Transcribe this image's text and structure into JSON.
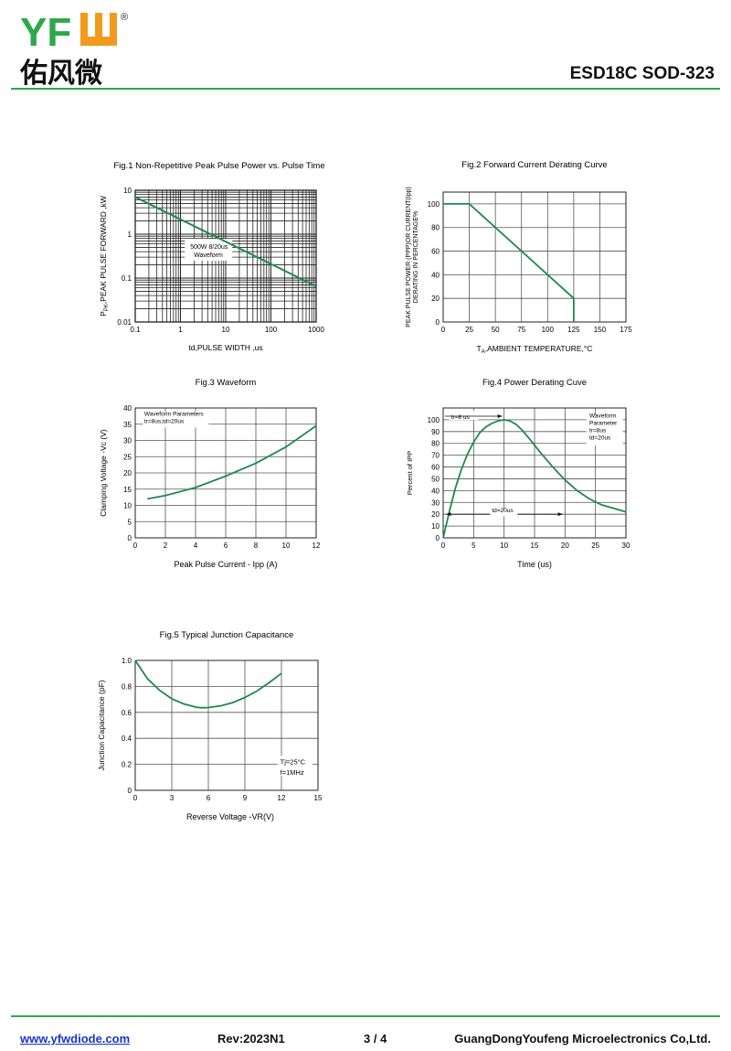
{
  "header": {
    "logo_text": "YFW",
    "logo_registered": "®",
    "logo_cn": "佑风微",
    "title": "ESD18C SOD-323"
  },
  "colors": {
    "accent": "#2ea84a",
    "curve": "#1f8a4c",
    "logo_green": "#2ea84a",
    "logo_orange": "#f39a1e"
  },
  "footer": {
    "url": "www.yfwdiode.com",
    "rev": "Rev:2023N1",
    "page": "3 / 4",
    "company": "GuangDongYoufeng Microelectronics Co,Ltd."
  },
  "chart_data": [
    {
      "type": "line",
      "title": "Fig.1  Non-Repetitive Peak Pulse Power vs. Pulse Time",
      "xlabel": "td,PULSE WIDTH ,us",
      "ylabel": "P",
      "ylabel_sub": "PK",
      "ylabel_rest": ",PEAK PULSE FORWARD ,kW",
      "xscale": "log",
      "yscale": "log",
      "xlim": [
        0.1,
        1000
      ],
      "ylim": [
        0.01,
        10
      ],
      "xticks": [
        "0.1",
        "1",
        "10",
        "100",
        "1000"
      ],
      "yticks": [
        "0.01",
        "0.1",
        "1",
        "10"
      ],
      "annotation": [
        "500W 8/20us",
        "Waveform"
      ],
      "grid": true,
      "series": [
        {
          "x": [
            0.1,
            1000
          ],
          "y": [
            7,
            0.065
          ]
        }
      ]
    },
    {
      "type": "line",
      "title": "Fig.2  Forward Current Derating Curve",
      "xlabel": "T",
      "xlabel_sub": "A",
      "xlabel_rest": ",AMBIENT TEMPERATURE,°C",
      "ylabel_lines": [
        "PEAK PULSE POWER (PPP)OR CURRENT(Ipp)",
        "DERATING IN PERCENTAGE%"
      ],
      "xlim": [
        0,
        175
      ],
      "ylim": [
        0,
        110
      ],
      "xticks": [
        "0",
        "25",
        "50",
        "75",
        "100",
        "125",
        "150",
        "175"
      ],
      "yticks": [
        "0",
        "20",
        "40",
        "60",
        "80",
        "100"
      ],
      "grid": true,
      "series": [
        {
          "x": [
            0,
            25,
            125,
            125
          ],
          "y": [
            100,
            100,
            20,
            0
          ]
        }
      ]
    },
    {
      "type": "line",
      "title": "Fig.3  Waveform",
      "xlabel": "Peak Pulse Current - Ipp (A)",
      "ylabel": "Clamping Voltage -Vc (V)",
      "xlim": [
        0,
        12
      ],
      "ylim": [
        0,
        40
      ],
      "xticks": [
        "0",
        "2",
        "4",
        "6",
        "8",
        "10",
        "12"
      ],
      "yticks": [
        "0",
        "5",
        "10",
        "15",
        "20",
        "25",
        "30",
        "35",
        "40"
      ],
      "annotation": [
        "Waveform Parameters",
        "tr=8us,td=20us"
      ],
      "grid": true,
      "series": [
        {
          "x": [
            0.8,
            2,
            4,
            6,
            8,
            10,
            12
          ],
          "y": [
            12,
            13,
            15.5,
            19,
            23,
            28,
            34.5
          ]
        }
      ]
    },
    {
      "type": "line",
      "title": "Fig.4  Power Derating Cuve",
      "xlabel": "Time (us)",
      "ylabel": "Percent of IPP",
      "xlim": [
        0,
        30
      ],
      "ylim": [
        0,
        110
      ],
      "xticks": [
        "0",
        "5",
        "10",
        "15",
        "20",
        "25",
        "30"
      ],
      "yticks": [
        "0",
        "10",
        "20",
        "30",
        "40",
        "50",
        "60",
        "70",
        "80",
        "90",
        "100"
      ],
      "annotations": {
        "tr": "tr=8 us",
        "td": "td=20us",
        "legend": [
          "Waveform",
          "Parameter",
          "tr=8us",
          "td=20us"
        ]
      },
      "grid": true,
      "series": [
        {
          "x": [
            0,
            1,
            2,
            3,
            4,
            5,
            6,
            7,
            8,
            9,
            10,
            11,
            12,
            13,
            14,
            16,
            18,
            20,
            22,
            24,
            26,
            28,
            30
          ],
          "y": [
            0,
            22,
            42,
            58,
            71,
            81,
            89,
            94,
            97,
            99,
            100,
            99,
            96,
            91,
            85,
            72,
            60,
            49,
            40,
            33,
            28,
            25,
            22
          ]
        }
      ]
    },
    {
      "type": "line",
      "title": "Fig.5  Typical Junction Capacitance",
      "xlabel": "Reverse  Voltage  -VR(V)",
      "ylabel": "Junction Capacitance (pF)",
      "xlim": [
        0,
        15
      ],
      "ylim": [
        0,
        1.0
      ],
      "xticks": [
        "0",
        "3",
        "6",
        "9",
        "12",
        "15"
      ],
      "yticks": [
        "0",
        "0.2",
        "0.4",
        "0.6",
        "0.8",
        "1.0"
      ],
      "annotation": [
        "Tj=25°C",
        "f=1MHz"
      ],
      "grid": true,
      "series": [
        {
          "x": [
            0,
            1,
            2,
            3,
            4,
            5,
            5.5,
            6,
            7,
            8,
            9,
            10,
            11,
            12
          ],
          "y": [
            1.0,
            0.86,
            0.77,
            0.705,
            0.665,
            0.64,
            0.635,
            0.637,
            0.65,
            0.675,
            0.715,
            0.765,
            0.83,
            0.9
          ]
        }
      ]
    }
  ]
}
